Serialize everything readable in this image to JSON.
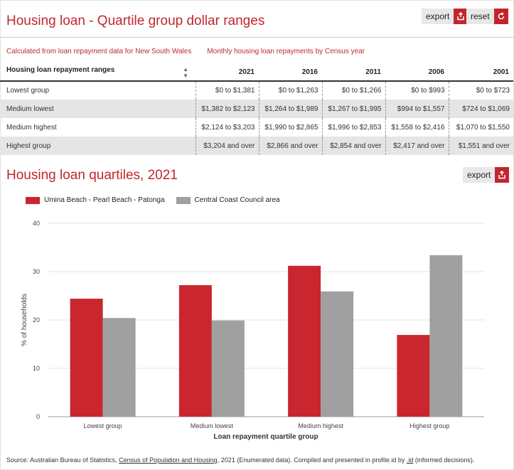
{
  "header": {
    "title": "Housing loan - Quartile group dollar ranges",
    "export_label": "export",
    "reset_label": "reset"
  },
  "subheads": {
    "left": "Calculated from loan repayment data for New South Wales",
    "right": "Monthly housing loan repayments by Census year"
  },
  "table": {
    "columns": [
      "Housing loan repayment ranges",
      "2021",
      "2016",
      "2011",
      "2006",
      "2001"
    ],
    "rows": [
      [
        "Lowest group",
        "$0 to $1,381",
        "$0 to $1,263",
        "$0 to $1,266",
        "$0 to $993",
        "$0 to $723"
      ],
      [
        "Medium lowest",
        "$1,382 to $2,123",
        "$1,264 to $1,989",
        "$1,267 to $1,995",
        "$994 to $1,557",
        "$724 to $1,069"
      ],
      [
        "Medium highest",
        "$2,124 to $3,203",
        "$1,990 to $2,865",
        "$1,996 to $2,853",
        "$1,558 to $2,416",
        "$1,070 to $1,550"
      ],
      [
        "Highest group",
        "$3,204 and over",
        "$2,866 and over",
        "$2,854 and over",
        "$2,417 and over",
        "$1,551 and over"
      ]
    ]
  },
  "chart_section": {
    "title": "Housing loan quartiles, 2021",
    "export_label": "export"
  },
  "chart_data": {
    "type": "bar",
    "title": "Housing loan quartiles, 2021",
    "categories": [
      "Lowest group",
      "Medium lowest",
      "Medium highest",
      "Highest group"
    ],
    "series": [
      {
        "name": "Umina Beach - Pearl Beach - Patonga",
        "color": "#c9262f",
        "values": [
          24.4,
          27.2,
          31.2,
          16.9
        ]
      },
      {
        "name": "Central Coast Council area",
        "color": "#a0a0a0",
        "values": [
          20.4,
          19.9,
          25.9,
          33.4
        ]
      }
    ],
    "xlabel": "Loan repayment quartile group",
    "ylabel": "% of households",
    "ylim": [
      0,
      40
    ],
    "yticks": [
      0,
      10,
      20,
      30,
      40
    ],
    "grid": true,
    "legend": "top-left"
  },
  "source": {
    "prefix": "Source: Australian Bureau of Statistics, ",
    "link1": "Census of Population and Housing",
    "middle": ", 2021 (Enumerated data). Compiled and presented in profile.id by ",
    "link2": ".id",
    "suffix": " (informed decisions)."
  },
  "colors": {
    "accent": "#c0272d",
    "series1": "#c9262f",
    "series2": "#a0a0a0"
  },
  "icons": {
    "export": "export-icon",
    "reset": "reset-icon",
    "sort": "sort-icon"
  }
}
